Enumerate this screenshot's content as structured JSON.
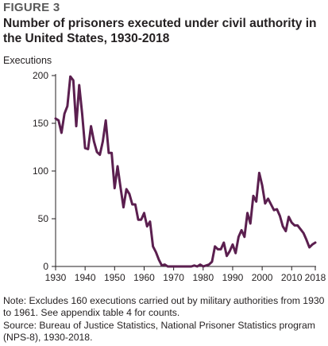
{
  "figure_label": "FIGURE 3",
  "chart_data": {
    "type": "line",
    "title": "Number of prisoners executed under civil authority in the United States, 1930-2018",
    "ylabel": "Executions",
    "xlabel": "",
    "xlim": [
      1930,
      2018
    ],
    "ylim": [
      0,
      200
    ],
    "x_ticks": [
      1930,
      1940,
      1950,
      1960,
      1970,
      1980,
      1990,
      2000,
      2010,
      2018
    ],
    "y_ticks": [
      0,
      50,
      100,
      150,
      200
    ],
    "grid": false,
    "line_color": "#5b1f4f",
    "x": [
      1930,
      1931,
      1932,
      1933,
      1934,
      1935,
      1936,
      1937,
      1938,
      1939,
      1940,
      1941,
      1942,
      1943,
      1944,
      1945,
      1946,
      1947,
      1948,
      1949,
      1950,
      1951,
      1952,
      1953,
      1954,
      1955,
      1956,
      1957,
      1958,
      1959,
      1960,
      1961,
      1962,
      1963,
      1964,
      1965,
      1966,
      1967,
      1968,
      1969,
      1970,
      1971,
      1972,
      1973,
      1974,
      1975,
      1976,
      1977,
      1978,
      1979,
      1980,
      1981,
      1982,
      1983,
      1984,
      1985,
      1986,
      1987,
      1988,
      1989,
      1990,
      1991,
      1992,
      1993,
      1994,
      1995,
      1996,
      1997,
      1998,
      1999,
      2000,
      2001,
      2002,
      2003,
      2004,
      2005,
      2006,
      2007,
      2008,
      2009,
      2010,
      2011,
      2012,
      2013,
      2014,
      2015,
      2016,
      2017,
      2018
    ],
    "values": [
      155,
      153,
      140,
      160,
      168,
      199,
      195,
      147,
      190,
      160,
      124,
      123,
      147,
      131,
      120,
      117,
      131,
      153,
      119,
      119,
      82,
      105,
      83,
      62,
      81,
      76,
      65,
      65,
      49,
      49,
      56,
      42,
      47,
      21,
      15,
      7,
      1,
      2,
      0,
      0,
      0,
      0,
      0,
      0,
      0,
      0,
      0,
      1,
      0,
      2,
      0,
      1,
      2,
      5,
      21,
      18,
      18,
      25,
      11,
      16,
      23,
      14,
      31,
      38,
      31,
      56,
      45,
      74,
      68,
      98,
      85,
      66,
      71,
      65,
      59,
      60,
      53,
      42,
      37,
      52,
      46,
      43,
      43,
      39,
      35,
      28,
      20,
      23,
      25
    ]
  },
  "note": "Note: Excludes 160 executions carried out by military authorities from 1930 to 1961. See appendix table 4 for counts.",
  "source": "Source: Bureau of Justice Statistics, National Prisoner Statistics program (NPS-8), 1930-2018."
}
